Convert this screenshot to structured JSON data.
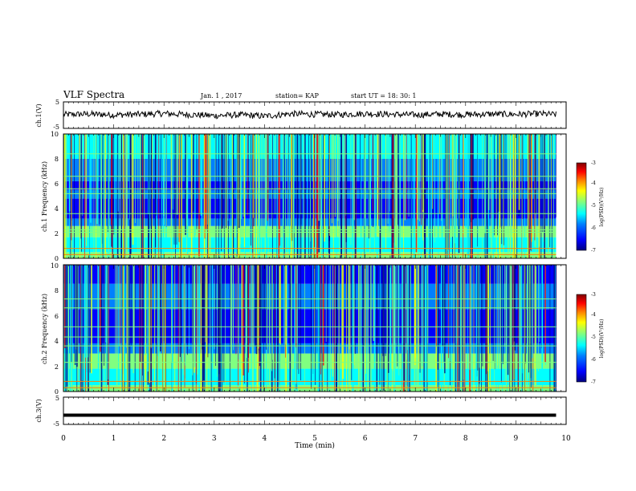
{
  "header": {
    "title": "VLF Spectra",
    "date": "Jan. 1 , 2017",
    "station": "station= KAP",
    "start": "start UT = 18: 30: 1"
  },
  "chart_data": [
    {
      "type": "line",
      "panel": "ch1-waveform",
      "ylabel": "ch.1(V)",
      "ylim": [
        -5,
        5
      ],
      "yticks": [
        "5",
        "-5"
      ],
      "xlim": [
        0,
        10
      ],
      "series": [
        {
          "x": [
            0,
            0.5,
            1,
            1.5,
            2,
            2.5,
            3,
            3.5,
            4,
            4.5,
            5,
            5.5,
            6,
            6.5,
            7,
            7.5,
            8,
            8.5,
            9,
            9.5,
            9.8
          ],
          "values": [
            0.2,
            0.4,
            0.1,
            0.3,
            0.6,
            0.2,
            -0.2,
            0.1,
            -0.4,
            0.5,
            0.3,
            0.2,
            0.6,
            0.3,
            0.1,
            0.4,
            0.2,
            0.4,
            0.3,
            0.5,
            0.2
          ]
        }
      ]
    },
    {
      "type": "heatmap",
      "panel": "ch1-spectrogram",
      "ylabel": "ch.1 Frequency (kHz)",
      "ylim": [
        0,
        10
      ],
      "yticks": [
        "0",
        "2",
        "4",
        "6",
        "8",
        "10"
      ],
      "xlim": [
        0,
        10
      ],
      "colorbar": {
        "label": "log(PSD)(V²/Hz)",
        "range": [
          -7,
          -3
        ],
        "ticks": [
          "-3",
          "-4",
          "-5",
          "-6",
          "-7"
        ]
      }
    },
    {
      "type": "heatmap",
      "panel": "ch2-spectrogram",
      "ylabel": "ch.2 Frequency (kHz)",
      "ylim": [
        0,
        10
      ],
      "yticks": [
        "0",
        "2",
        "4",
        "6",
        "8",
        "10"
      ],
      "xlim": [
        0,
        10
      ],
      "colorbar": {
        "label": "log(PSD)(V²/Hz)",
        "range": [
          -7,
          -3
        ],
        "ticks": [
          "-3",
          "-4",
          "-5",
          "-6",
          "-7"
        ]
      }
    },
    {
      "type": "line",
      "panel": "ch3-waveform",
      "ylabel": "ch.3(V)",
      "ylim": [
        -5,
        5
      ],
      "yticks": [
        "5",
        "-5"
      ],
      "xlim": [
        0,
        10
      ],
      "series": [
        {
          "x": [
            0,
            9.8
          ],
          "values": [
            -1.6,
            -1.6
          ]
        }
      ]
    }
  ],
  "xaxis": {
    "label": "Time (min)",
    "ticks": [
      "0",
      "1",
      "2",
      "3",
      "4",
      "5",
      "6",
      "7",
      "8",
      "9",
      "10"
    ]
  },
  "colors": {
    "colormap": [
      "#00007f",
      "#0000ff",
      "#0080ff",
      "#00ffff",
      "#80ff80",
      "#ffff00",
      "#ff8000",
      "#ff0000",
      "#7f0000"
    ]
  }
}
